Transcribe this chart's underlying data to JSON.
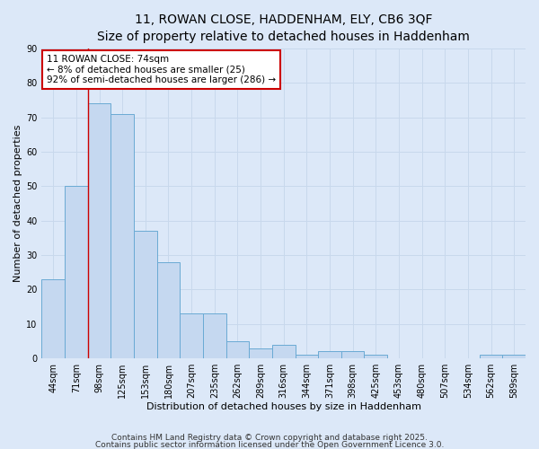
{
  "title_line1": "11, ROWAN CLOSE, HADDENHAM, ELY, CB6 3QF",
  "title_line2": "Size of property relative to detached houses in Haddenham",
  "xlabel": "Distribution of detached houses by size in Haddenham",
  "ylabel": "Number of detached properties",
  "categories": [
    "44sqm",
    "71sqm",
    "98sqm",
    "125sqm",
    "153sqm",
    "180sqm",
    "207sqm",
    "235sqm",
    "262sqm",
    "289sqm",
    "316sqm",
    "344sqm",
    "371sqm",
    "398sqm",
    "425sqm",
    "453sqm",
    "480sqm",
    "507sqm",
    "534sqm",
    "562sqm",
    "589sqm"
  ],
  "values": [
    23,
    50,
    74,
    71,
    37,
    28,
    13,
    13,
    5,
    3,
    4,
    1,
    2,
    2,
    1,
    0,
    0,
    0,
    0,
    1,
    1
  ],
  "bar_color": "#c5d8f0",
  "bar_edgecolor": "#6aaad4",
  "annotation_text": "11 ROWAN CLOSE: 74sqm\n← 8% of detached houses are smaller (25)\n92% of semi-detached houses are larger (286) →",
  "annotation_box_color": "white",
  "annotation_box_edgecolor": "#cc0000",
  "vline_color": "#cc0000",
  "vline_x_index": 1.5,
  "ylim": [
    0,
    90
  ],
  "yticks": [
    0,
    10,
    20,
    30,
    40,
    50,
    60,
    70,
    80,
    90
  ],
  "grid_color": "#c8d8ec",
  "background_color": "#dce8f8",
  "footer_line1": "Contains HM Land Registry data © Crown copyright and database right 2025.",
  "footer_line2": "Contains public sector information licensed under the Open Government Licence 3.0.",
  "title_fontsize": 10,
  "subtitle_fontsize": 9,
  "axis_label_fontsize": 8,
  "tick_fontsize": 7,
  "annotation_fontsize": 7.5,
  "footer_fontsize": 6.5
}
